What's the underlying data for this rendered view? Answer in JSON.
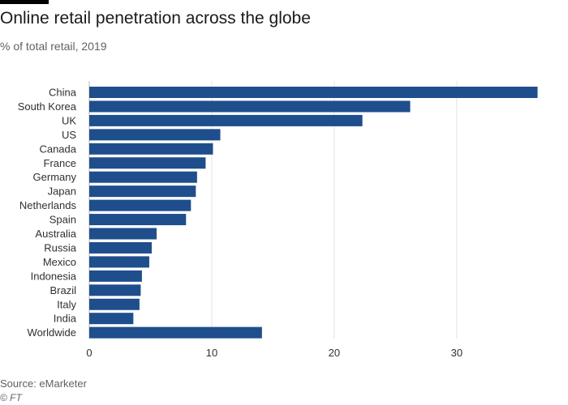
{
  "header": {
    "title": "Online retail penetration across the globe",
    "subtitle": "% of total retail, 2019"
  },
  "footer": {
    "source": "Source: eMarketer",
    "copyright": "© FT"
  },
  "colors": {
    "bar": "#1f4e8c",
    "grid": "#e6e3e0",
    "text": "#33302e"
  },
  "chart_data": {
    "type": "bar",
    "orientation": "horizontal",
    "title": "Online retail penetration across the globe",
    "subtitle": "% of total retail, 2019",
    "xlabel": "",
    "ylabel": "",
    "xlim": [
      0,
      36.5
    ],
    "xticks": [
      0,
      10,
      20,
      30
    ],
    "grid": true,
    "categories": [
      "China",
      "South Korea",
      "UK",
      "US",
      "Canada",
      "France",
      "Germany",
      "Japan",
      "Netherlands",
      "Spain",
      "Australia",
      "Russia",
      "Mexico",
      "Indonesia",
      "Brazil",
      "Italy",
      "India",
      "Worldwide"
    ],
    "values": [
      36.6,
      26.2,
      22.3,
      10.7,
      10.1,
      9.5,
      8.8,
      8.7,
      8.3,
      7.9,
      5.5,
      5.1,
      4.9,
      4.3,
      4.2,
      4.1,
      3.6,
      14.1
    ]
  }
}
